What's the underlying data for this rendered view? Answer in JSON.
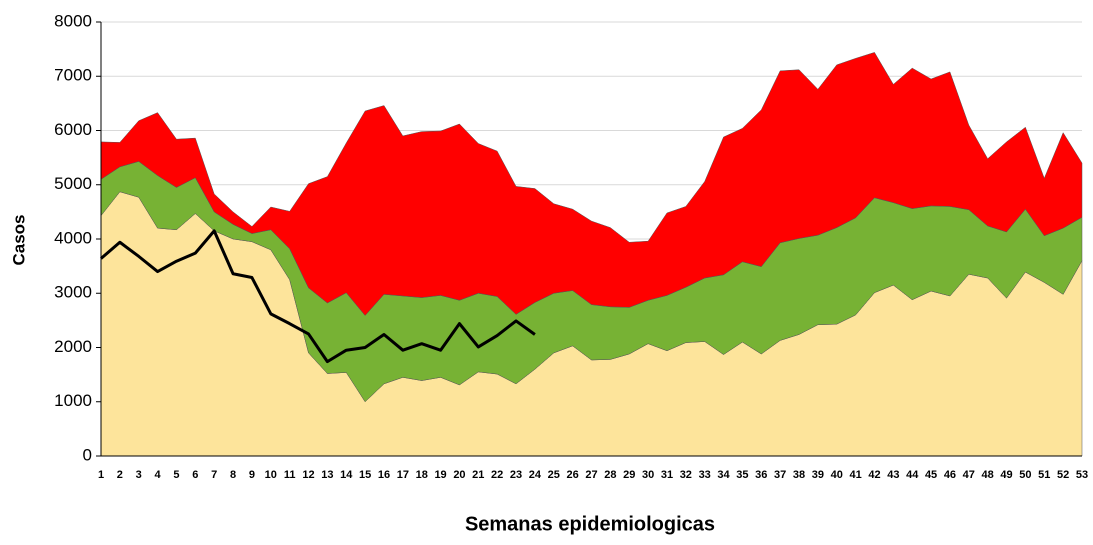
{
  "chart_data": {
    "type": "stacked_area_line",
    "x_label": "Semanas epidemiologicas",
    "y_label": "Casos",
    "categories": [
      "1",
      "2",
      "3",
      "4",
      "5",
      "6",
      "7",
      "8",
      "9",
      "10",
      "11",
      "12",
      "13",
      "14",
      "15",
      "16",
      "17",
      "18",
      "19",
      "20",
      "21",
      "22",
      "23",
      "24",
      "25",
      "26",
      "27",
      "28",
      "29",
      "30",
      "31",
      "32",
      "33",
      "34",
      "35",
      "36",
      "37",
      "38",
      "39",
      "40",
      "41",
      "42",
      "43",
      "44",
      "45",
      "46",
      "47",
      "48",
      "49",
      "50",
      "51",
      "52",
      "53"
    ],
    "series": [
      {
        "color": "#fde49b",
        "kind": "area",
        "values": [
          4430,
          4870,
          4770,
          4200,
          4170,
          4470,
          4150,
          4000,
          3950,
          3800,
          3250,
          1900,
          1520,
          1540,
          1000,
          1330,
          1450,
          1390,
          1450,
          1310,
          1550,
          1510,
          1330,
          1600,
          1900,
          2030,
          1770,
          1780,
          1880,
          2070,
          1940,
          2090,
          2110,
          1870,
          2100,
          1880,
          2130,
          2240,
          2420,
          2430,
          2600,
          3010,
          3150,
          2880,
          3040,
          2950,
          3350,
          3280,
          2910,
          3390,
          3200,
          2980,
          3600
        ]
      },
      {
        "color": "#77b234",
        "kind": "area",
        "values": [
          670,
          460,
          660,
          970,
          780,
          660,
          350,
          270,
          150,
          370,
          570,
          1200,
          1300,
          1470,
          1590,
          1650,
          1500,
          1530,
          1510,
          1560,
          1450,
          1430,
          1280,
          1230,
          1100,
          1020,
          1020,
          970,
          860,
          800,
          1020,
          1020,
          1170,
          1470,
          1480,
          1610,
          1800,
          1770,
          1650,
          1780,
          1790,
          1750,
          1520,
          1680,
          1570,
          1650,
          1190,
          960,
          1220,
          1160,
          860,
          1220,
          800
        ]
      },
      {
        "color": "#ff0000",
        "kind": "area",
        "values": [
          690,
          450,
          750,
          1160,
          890,
          730,
          330,
          230,
          130,
          420,
          690,
          1920,
          2330,
          2760,
          3770,
          3480,
          2950,
          3060,
          3030,
          3250,
          2760,
          2680,
          2360,
          2100,
          1650,
          1500,
          1540,
          1460,
          1200,
          1090,
          1520,
          1490,
          1780,
          2540,
          2460,
          2890,
          3170,
          3110,
          2690,
          3000,
          2940,
          2680,
          2180,
          2590,
          2340,
          2480,
          1560,
          1240,
          1660,
          1510,
          1060,
          1760,
          1000
        ]
      },
      {
        "color": "#000000",
        "kind": "line",
        "values": [
          3640,
          3940,
          3680,
          3400,
          3590,
          3740,
          4150,
          3360,
          3290,
          2620,
          2440,
          2250,
          1740,
          1950,
          2000,
          2240,
          1950,
          2070,
          1950,
          2440,
          2010,
          2220,
          2490,
          2240,
          null,
          null,
          null,
          null,
          null,
          null,
          null,
          null,
          null,
          null,
          null,
          null,
          null,
          null,
          null,
          null,
          null,
          null,
          null,
          null,
          null,
          null,
          null,
          null,
          null,
          null,
          null,
          null,
          null
        ]
      }
    ],
    "ylim": [
      0,
      8000
    ],
    "yticks": [
      0,
      1000,
      2000,
      3000,
      4000,
      5000,
      6000,
      7000,
      8000
    ],
    "grid": true
  }
}
